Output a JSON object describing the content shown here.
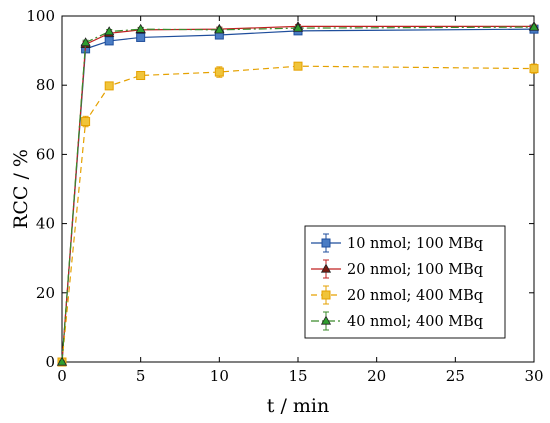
{
  "chart_data": {
    "type": "line",
    "xlabel": "t / min",
    "ylabel": "RCC / %",
    "xlim": [
      0,
      30
    ],
    "ylim": [
      0,
      100
    ],
    "x_ticks": [
      0,
      5,
      10,
      15,
      20,
      25,
      30
    ],
    "y_ticks": [
      0,
      20,
      40,
      60,
      80,
      100
    ],
    "grid": false,
    "legend_position": "lower-right",
    "series": [
      {
        "name": "10 nmol; 100 MBq",
        "x": [
          0,
          1.5,
          3,
          5,
          10,
          15,
          30
        ],
        "y": [
          0,
          90.5,
          92.8,
          93.8,
          94.5,
          95.7,
          96.2
        ],
        "err": [
          0.3,
          0.8,
          0.7,
          0.6,
          0.7,
          0.5,
          0.4
        ],
        "color": "#1f4e9c",
        "marker_fill": "#4a7cc4",
        "marker": "square",
        "dash": ""
      },
      {
        "name": "20 nmol; 100 MBq",
        "x": [
          0,
          1.5,
          3,
          5,
          10,
          15,
          30
        ],
        "y": [
          0,
          91.8,
          95.0,
          96.0,
          96.2,
          97.0,
          97.0
        ],
        "err": [
          0.3,
          0.8,
          0.7,
          0.6,
          0.6,
          0.5,
          0.4
        ],
        "color": "#c02020",
        "marker_fill": "#7a1a10",
        "marker": "triangle",
        "dash": ""
      },
      {
        "name": "20 nmol; 400 MBq",
        "x": [
          0,
          1.5,
          3,
          5,
          10,
          15,
          30
        ],
        "y": [
          0,
          69.5,
          79.8,
          82.8,
          83.8,
          85.5,
          84.8
        ],
        "err": [
          0.3,
          1.5,
          0.8,
          0.7,
          1.5,
          0.8,
          1.3
        ],
        "color": "#e5a100",
        "marker_fill": "#f0c43a",
        "marker": "square",
        "dash": "6,4"
      },
      {
        "name": "40 nmol; 400 MBq",
        "x": [
          0,
          1.5,
          3,
          5,
          10,
          15,
          30
        ],
        "y": [
          0,
          92.3,
          95.5,
          96.2,
          96.0,
          96.5,
          96.8
        ],
        "err": [
          0.3,
          0.7,
          0.6,
          0.5,
          0.6,
          0.5,
          0.4
        ],
        "color": "#3a8a2a",
        "marker_fill": "#2e9e2e",
        "marker": "triangle",
        "dash": "8,3,2,3"
      }
    ]
  }
}
